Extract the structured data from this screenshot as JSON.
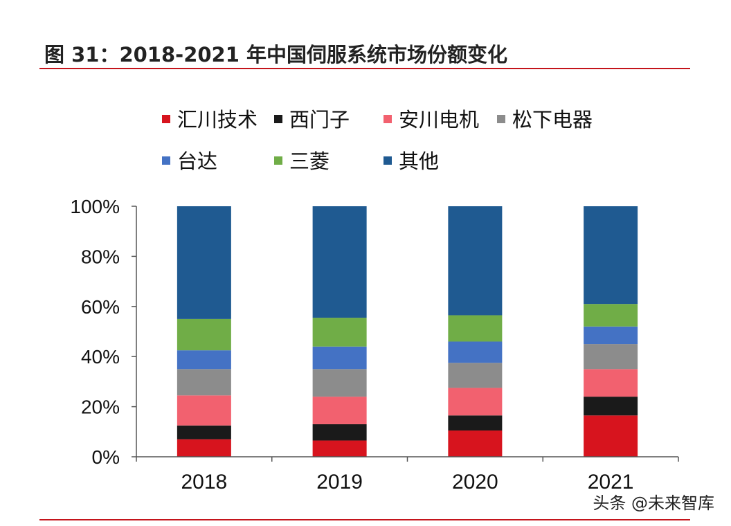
{
  "figure": {
    "title": "图 31：2018-2021 年中国伺服系统市场份额变化",
    "watermark": "头条 @未来智库"
  },
  "chart_data": {
    "type": "bar",
    "stacked": true,
    "title": "",
    "xlabel": "",
    "ylabel": "",
    "ylim": [
      0,
      100
    ],
    "yticks": [
      "0%",
      "20%",
      "40%",
      "60%",
      "80%",
      "100%"
    ],
    "categories": [
      "2018",
      "2019",
      "2020",
      "2021"
    ],
    "legend_position": "top",
    "series": [
      {
        "name": "汇川技术",
        "color": "#d7141e",
        "values": [
          7,
          6.5,
          10.5,
          16.5
        ]
      },
      {
        "name": "西门子",
        "color": "#1a1a1a",
        "values": [
          5.5,
          6.5,
          6.0,
          7.5
        ]
      },
      {
        "name": "安川电机",
        "color": "#f2616f",
        "values": [
          12,
          11,
          11,
          11
        ]
      },
      {
        "name": "松下电器",
        "color": "#8c8c8c",
        "values": [
          10.5,
          11,
          10,
          10
        ]
      },
      {
        "name": "台达",
        "color": "#4472c4",
        "values": [
          7.5,
          9,
          8.5,
          7
        ]
      },
      {
        "name": "三菱",
        "color": "#70ad47",
        "values": [
          12.5,
          11.5,
          10.5,
          9
        ]
      },
      {
        "name": "其他",
        "color": "#1f5a91",
        "values": [
          45,
          44.5,
          43.5,
          39
        ]
      }
    ]
  }
}
